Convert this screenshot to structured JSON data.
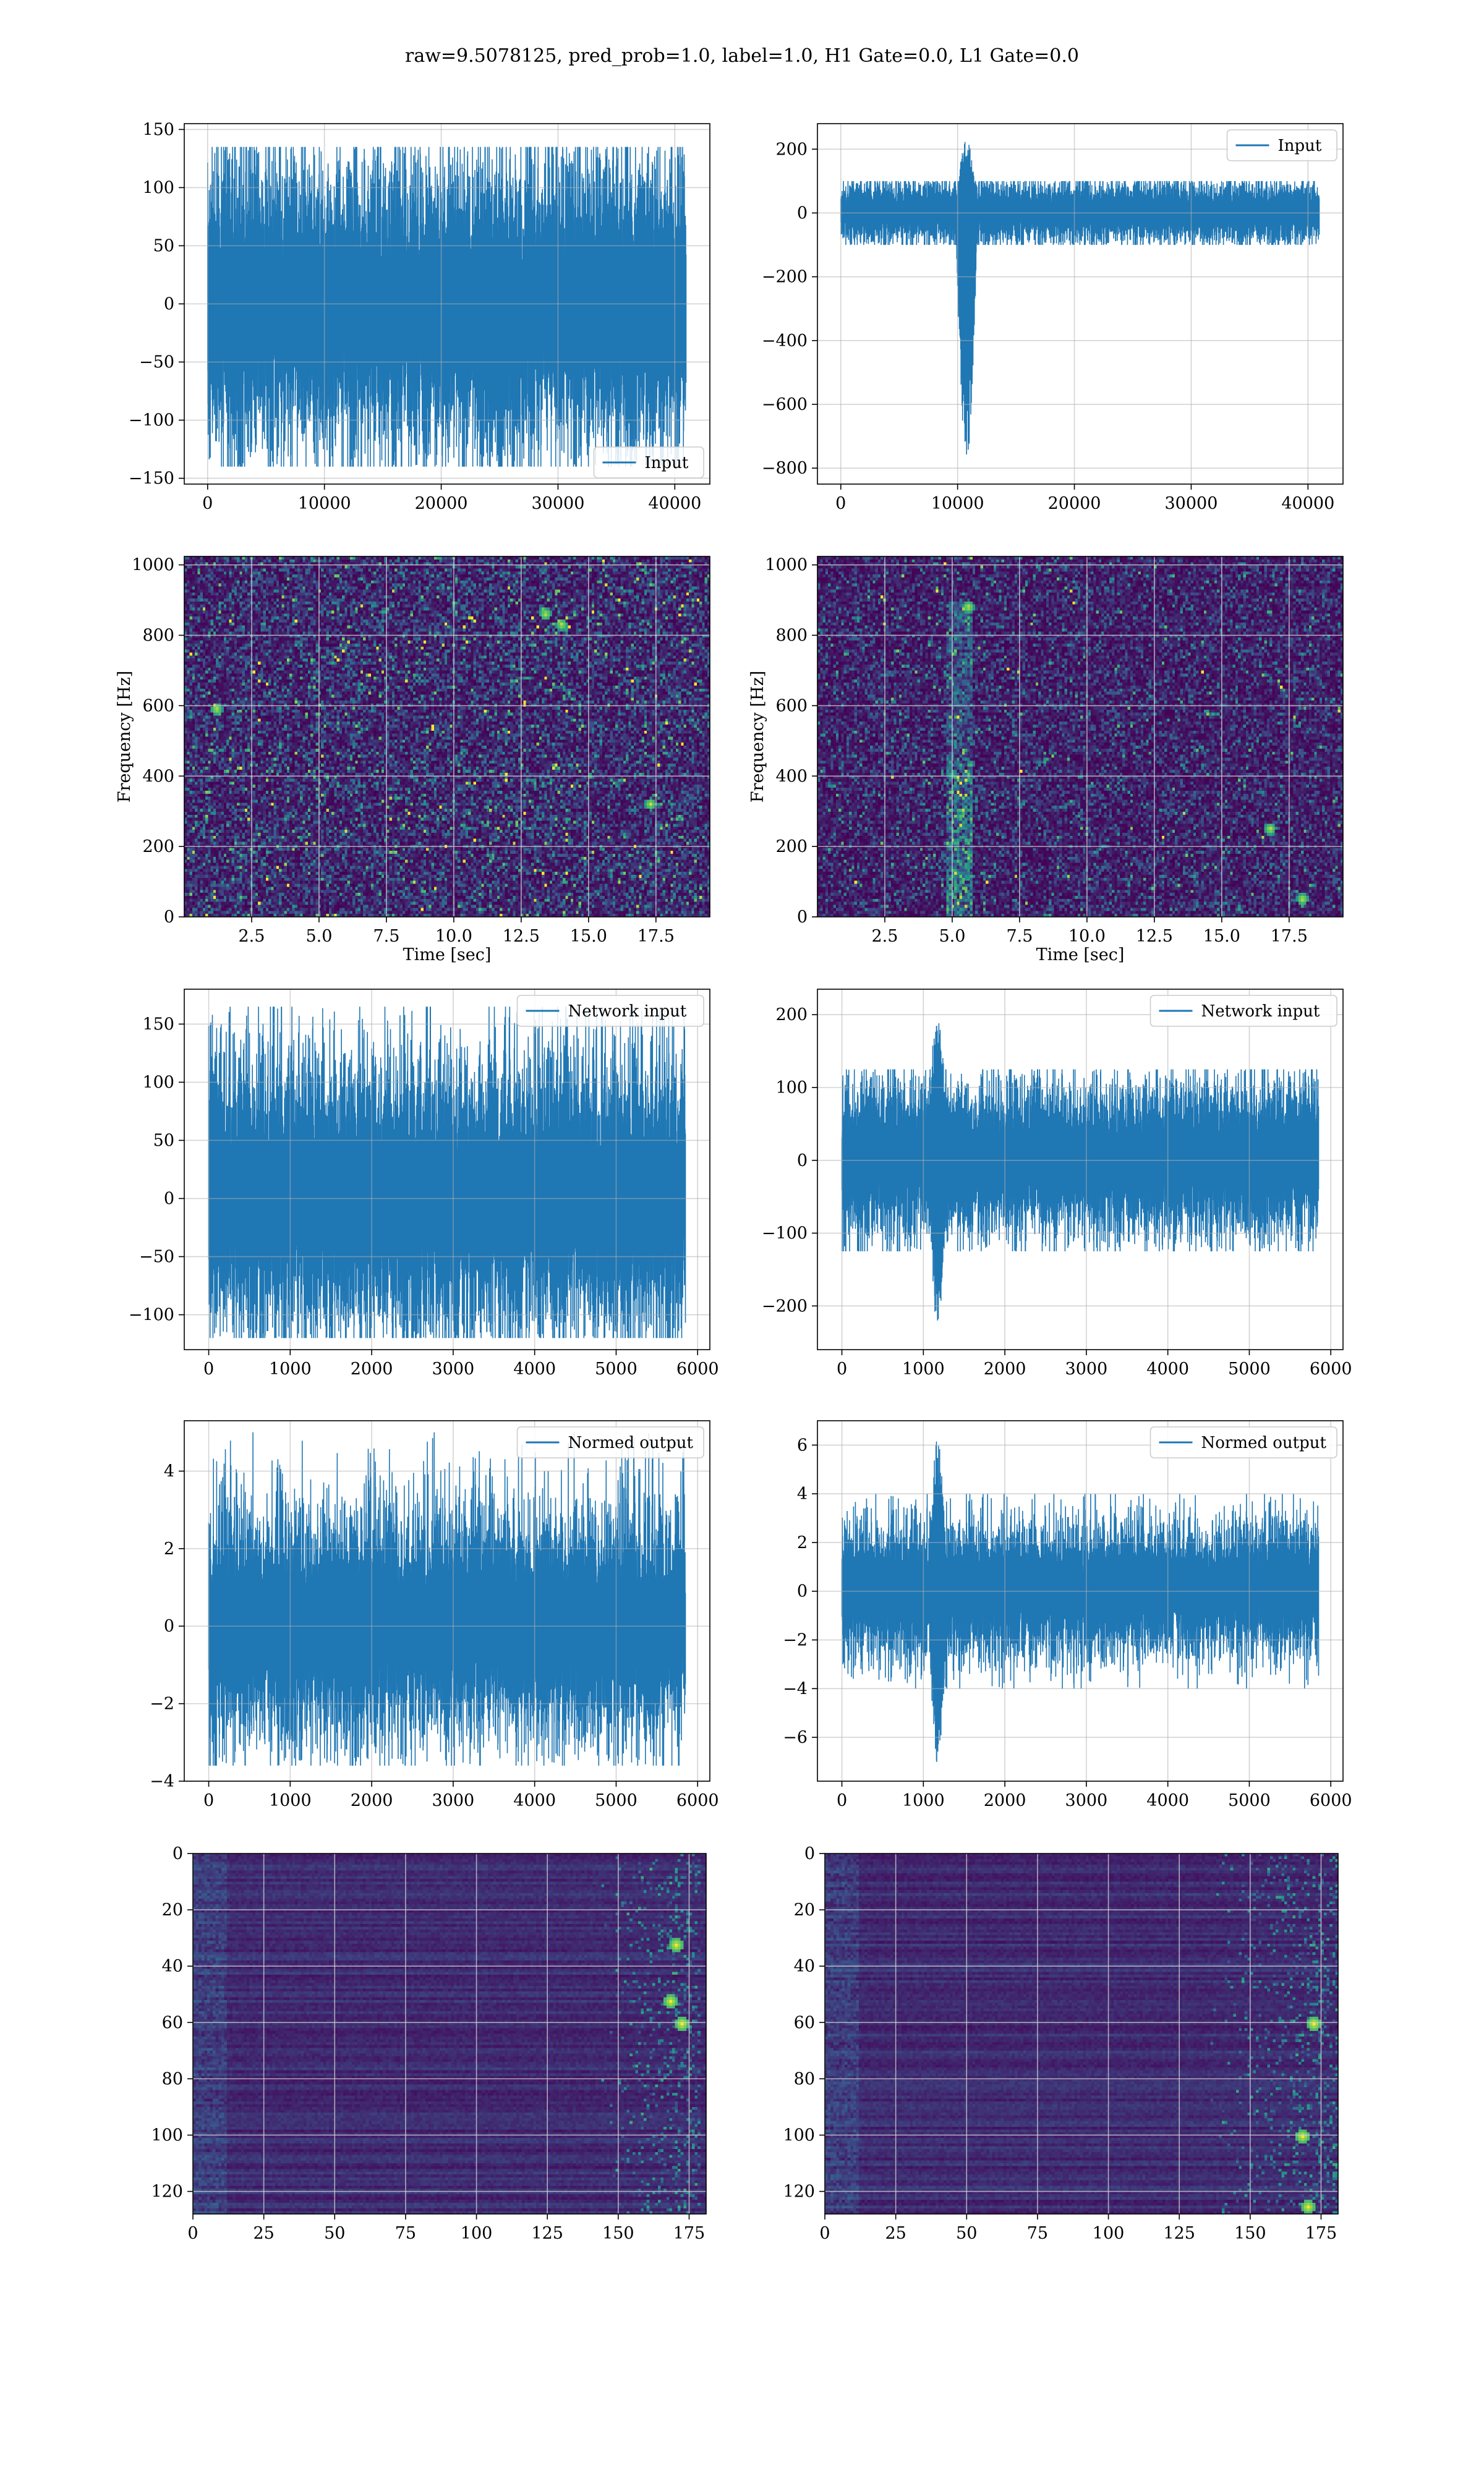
{
  "figure": {
    "suptitle": "raw=9.5078125, pred_prob=1.0, label=1.0, H1 Gate=0.0, L1 Gate=0.0"
  },
  "colors": {
    "line": "#1f77b4",
    "grid": "#b0b0b0",
    "heat_low": "#440154",
    "heat_mid": "#21918c",
    "heat_high": "#fde725"
  },
  "chart_data": [
    {
      "id": "h1-input",
      "type": "line",
      "title": "",
      "legend": {
        "entries": [
          "Input"
        ],
        "placement": "lower-right"
      },
      "xlim": [
        -2000,
        43000
      ],
      "ylim": [
        -155,
        155
      ],
      "xticks": [
        0,
        10000,
        20000,
        30000,
        40000
      ],
      "yticks": [
        -150,
        -100,
        -50,
        0,
        50,
        100,
        150
      ],
      "xticklabels": [
        "0",
        "10000",
        "20000",
        "30000",
        "40000"
      ],
      "yticklabels": [
        "−150",
        "−100",
        "−50",
        "0",
        "50",
        "100",
        "150"
      ],
      "series": [
        {
          "name": "Input",
          "n": 40960,
          "x_range": [
            0,
            40960
          ],
          "envelope_core": [
            -75,
            75
          ],
          "envelope_peak": [
            -140,
            135
          ],
          "bursts": []
        }
      ],
      "grid": true
    },
    {
      "id": "l1-input",
      "type": "line",
      "title": "",
      "legend": {
        "entries": [
          "Input"
        ],
        "placement": "upper-right"
      },
      "xlim": [
        -2000,
        43000
      ],
      "ylim": [
        -850,
        280
      ],
      "xticks": [
        0,
        10000,
        20000,
        30000,
        40000
      ],
      "yticks": [
        -800,
        -600,
        -400,
        -200,
        0,
        200
      ],
      "xticklabels": [
        "0",
        "10000",
        "20000",
        "30000",
        "40000"
      ],
      "yticklabels": [
        "−800",
        "−600",
        "−400",
        "−200",
        "0",
        "200"
      ],
      "series": [
        {
          "name": "Input",
          "n": 40960,
          "x_range": [
            0,
            40960
          ],
          "envelope_core": [
            -55,
            60
          ],
          "envelope_peak": [
            -100,
            100
          ],
          "bursts": [
            {
              "x_start": 9800,
              "x_end": 12500,
              "min": -790,
              "max": 230
            }
          ]
        }
      ],
      "grid": true
    },
    {
      "id": "h1-spectrogram",
      "type": "heatmap",
      "title": "",
      "xlabel": "Time [sec]",
      "ylabel": "Frequency [Hz]",
      "xlim": [
        0,
        19.5
      ],
      "ylim": [
        0,
        1024
      ],
      "xticks": [
        2.5,
        5.0,
        7.5,
        10.0,
        12.5,
        15.0,
        17.5
      ],
      "yticks": [
        0,
        200,
        400,
        600,
        800,
        1000
      ],
      "xticklabels": [
        "2.5",
        "5.0",
        "7.5",
        "10.0",
        "12.5",
        "15.0",
        "17.5"
      ],
      "yticklabels": [
        "0",
        "200",
        "400",
        "600",
        "800",
        "1000"
      ],
      "colormap": "viridis",
      "features": {
        "mean_level": 0.18,
        "hot_spots": [
          [
            17.3,
            320
          ],
          [
            14.0,
            830
          ],
          [
            13.4,
            860
          ],
          [
            1.2,
            590
          ]
        ],
        "bursts": []
      },
      "grid": true
    },
    {
      "id": "l1-spectrogram",
      "type": "heatmap",
      "title": "",
      "xlabel": "Time [sec]",
      "ylabel": "Frequency [Hz]",
      "xlim": [
        0,
        19.5
      ],
      "ylim": [
        0,
        1024
      ],
      "xticks": [
        2.5,
        5.0,
        7.5,
        10.0,
        12.5,
        15.0,
        17.5
      ],
      "yticks": [
        0,
        200,
        400,
        600,
        800,
        1000
      ],
      "xticklabels": [
        "2.5",
        "5.0",
        "7.5",
        "10.0",
        "12.5",
        "15.0",
        "17.5"
      ],
      "yticklabels": [
        "0",
        "200",
        "400",
        "600",
        "800",
        "1000"
      ],
      "colormap": "viridis",
      "features": {
        "mean_level": 0.14,
        "hot_spots": [
          [
            5.6,
            880
          ],
          [
            18.0,
            50
          ],
          [
            16.8,
            250
          ]
        ],
        "bursts": [
          {
            "t_start": 4.8,
            "t_end": 5.8,
            "f_start": 0,
            "f_end": 900
          }
        ]
      },
      "grid": true
    },
    {
      "id": "h1-network-input",
      "type": "line",
      "title": "",
      "legend": {
        "entries": [
          "Network input"
        ],
        "placement": "upper-right"
      },
      "xlim": [
        -300,
        6150
      ],
      "ylim": [
        -130,
        180
      ],
      "xticks": [
        0,
        1000,
        2000,
        3000,
        4000,
        5000,
        6000
      ],
      "yticks": [
        -100,
        -50,
        0,
        50,
        100,
        150
      ],
      "xticklabels": [
        "0",
        "1000",
        "2000",
        "3000",
        "4000",
        "5000",
        "6000"
      ],
      "yticklabels": [
        "−100",
        "−50",
        "0",
        "50",
        "100",
        "150"
      ],
      "series": [
        {
          "name": "Network input",
          "n": 5850,
          "x_range": [
            0,
            5850
          ],
          "envelope_core": [
            -70,
            75
          ],
          "envelope_peak": [
            -120,
            165
          ],
          "bursts": []
        }
      ],
      "grid": true
    },
    {
      "id": "l1-network-input",
      "type": "line",
      "title": "",
      "legend": {
        "entries": [
          "Network input"
        ],
        "placement": "upper-right"
      },
      "xlim": [
        -300,
        6150
      ],
      "ylim": [
        -260,
        235
      ],
      "xticks": [
        0,
        1000,
        2000,
        3000,
        4000,
        5000,
        6000
      ],
      "yticks": [
        -200,
        -100,
        0,
        100,
        200
      ],
      "xticklabels": [
        "0",
        "1000",
        "2000",
        "3000",
        "4000",
        "5000",
        "6000"
      ],
      "yticklabels": [
        "−200",
        "−100",
        "0",
        "100",
        "200"
      ],
      "series": [
        {
          "name": "Network input",
          "n": 5850,
          "x_range": [
            0,
            5850
          ],
          "envelope_core": [
            -60,
            65
          ],
          "envelope_peak": [
            -125,
            125
          ],
          "bursts": [
            {
              "x_start": 1050,
              "x_end": 1400,
              "min": -230,
              "max": 215
            }
          ]
        }
      ],
      "grid": true
    },
    {
      "id": "h1-normed-output",
      "type": "line",
      "title": "",
      "legend": {
        "entries": [
          "Normed output"
        ],
        "placement": "upper-right"
      },
      "xlim": [
        -300,
        6150
      ],
      "ylim": [
        -4,
        5.3
      ],
      "xticks": [
        0,
        1000,
        2000,
        3000,
        4000,
        5000,
        6000
      ],
      "yticks": [
        -4,
        -2,
        0,
        2,
        4
      ],
      "xticklabels": [
        "0",
        "1000",
        "2000",
        "3000",
        "4000",
        "5000",
        "6000"
      ],
      "yticklabels": [
        "−4",
        "−2",
        "0",
        "2",
        "4"
      ],
      "series": [
        {
          "name": "Normed output",
          "n": 5850,
          "x_range": [
            0,
            5850
          ],
          "envelope_core": [
            -1.7,
            1.8
          ],
          "envelope_peak": [
            -3.6,
            5.0
          ],
          "bursts": []
        }
      ],
      "grid": true
    },
    {
      "id": "l1-normed-output",
      "type": "line",
      "title": "",
      "legend": {
        "entries": [
          "Normed output"
        ],
        "placement": "upper-right"
      },
      "xlim": [
        -300,
        6150
      ],
      "ylim": [
        -7.8,
        7.0
      ],
      "xticks": [
        0,
        1000,
        2000,
        3000,
        4000,
        5000,
        6000
      ],
      "yticks": [
        -6,
        -4,
        -2,
        0,
        2,
        4,
        6
      ],
      "xticklabels": [
        "0",
        "1000",
        "2000",
        "3000",
        "4000",
        "5000",
        "6000"
      ],
      "yticklabels": [
        "−6",
        "−4",
        "−2",
        "0",
        "2",
        "4",
        "6"
      ],
      "series": [
        {
          "name": "Normed output",
          "n": 5850,
          "x_range": [
            0,
            5850
          ],
          "envelope_core": [
            -1.6,
            1.7
          ],
          "envelope_peak": [
            -4.0,
            4.0
          ],
          "bursts": [
            {
              "x_start": 1050,
              "x_end": 1400,
              "min": -7.1,
              "max": 6.4
            }
          ]
        }
      ],
      "grid": true
    },
    {
      "id": "h1-feature-map",
      "type": "heatmap",
      "title": "",
      "xlim": [
        0,
        181
      ],
      "ylim": [
        128,
        0
      ],
      "xticks": [
        0,
        25,
        50,
        75,
        100,
        125,
        150,
        175
      ],
      "yticks": [
        0,
        20,
        40,
        60,
        80,
        100,
        120
      ],
      "xticklabels": [
        "0",
        "25",
        "50",
        "75",
        "100",
        "125",
        "150",
        "175"
      ],
      "yticklabels": [
        "0",
        "20",
        "40",
        "60",
        "80",
        "100",
        "120"
      ],
      "colormap": "viridis",
      "features": {
        "rows": 128,
        "cols": 181,
        "bright_column_range": [
          158,
          178
        ],
        "peak_cells": [
          [
            172,
            60
          ],
          [
            168,
            52
          ],
          [
            170,
            32
          ]
        ]
      },
      "grid": true
    },
    {
      "id": "l1-feature-map",
      "type": "heatmap",
      "title": "",
      "xlim": [
        0,
        181
      ],
      "ylim": [
        128,
        0
      ],
      "xticks": [
        0,
        25,
        50,
        75,
        100,
        125,
        150,
        175
      ],
      "yticks": [
        0,
        20,
        40,
        60,
        80,
        100,
        120
      ],
      "xticklabels": [
        "0",
        "25",
        "50",
        "75",
        "100",
        "125",
        "150",
        "175"
      ],
      "yticklabels": [
        "0",
        "20",
        "40",
        "60",
        "80",
        "100",
        "120"
      ],
      "colormap": "viridis",
      "features": {
        "rows": 128,
        "cols": 181,
        "bright_column_range": [
          150,
          180
        ],
        "peak_cells": [
          [
            170,
            125
          ],
          [
            172,
            60
          ],
          [
            168,
            100
          ]
        ]
      },
      "grid": true
    }
  ]
}
